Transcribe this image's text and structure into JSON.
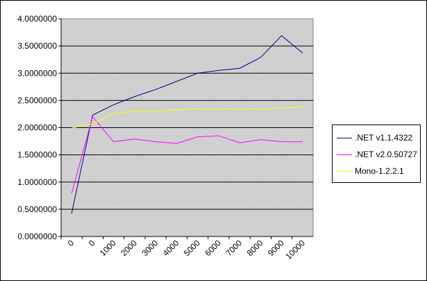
{
  "chart_data": {
    "type": "line",
    "categories": [
      "0",
      "0",
      "1000",
      "2000",
      "3000",
      "4000",
      "5000",
      "6000",
      "7000",
      "8000",
      "9000",
      "10000"
    ],
    "ylim": [
      0,
      4
    ],
    "y_tick_labels": [
      "0.0000000",
      "0.5000000",
      "1.0000000",
      "1.5000000",
      "2.0000000",
      "2.5000000",
      "3.0000000",
      "3.5000000",
      "4.0000000"
    ],
    "grid": true,
    "legend_position": "right",
    "series": [
      {
        "name": ".NET v1.1.4322",
        "color": "#000080",
        "values": [
          0.42,
          2.23,
          2.42,
          2.57,
          2.7,
          2.85,
          3.0,
          3.05,
          3.09,
          3.29,
          3.69,
          3.37
        ]
      },
      {
        "name": ".NET v2.0.50727",
        "color": "#ff00ff",
        "values": [
          0.79,
          2.2,
          1.74,
          1.79,
          1.74,
          1.71,
          1.83,
          1.85,
          1.72,
          1.78,
          1.74,
          1.74
        ]
      },
      {
        "name": "Mono-1.2.2.1",
        "color": "#ffff00",
        "values": [
          1.99,
          2.07,
          2.26,
          2.3,
          2.3,
          2.33,
          2.35,
          2.34,
          2.35,
          2.34,
          2.36,
          2.38
        ]
      }
    ]
  },
  "colors": {
    "plot_background": "#c0c0c0",
    "gridline": "#000000"
  }
}
